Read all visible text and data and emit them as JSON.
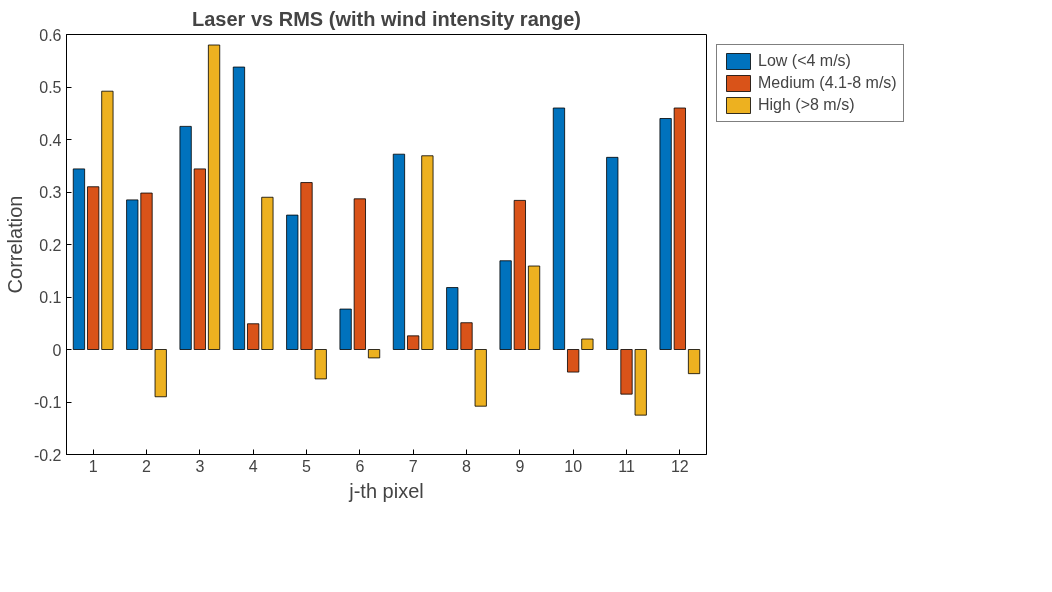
{
  "chart_data": {
    "type": "bar",
    "title": "Laser vs RMS (with wind intensity range)",
    "xlabel": "j-th pixel",
    "ylabel": "Correlation",
    "categories": [
      "1",
      "2",
      "3",
      "4",
      "5",
      "6",
      "7",
      "8",
      "9",
      "10",
      "11",
      "12"
    ],
    "series": [
      {
        "name": "Low (<4 m/s)",
        "color": "#0072bd",
        "values": [
          0.344,
          0.285,
          0.425,
          0.538,
          0.256,
          0.077,
          0.372,
          0.118,
          0.169,
          0.46,
          0.366,
          0.44
        ]
      },
      {
        "name": "Medium (4.1-8 m/s)",
        "color": "#d95319",
        "values": [
          0.31,
          0.298,
          0.344,
          0.049,
          0.318,
          0.287,
          0.026,
          0.051,
          0.284,
          -0.043,
          -0.085,
          0.46
        ]
      },
      {
        "name": "High (>8 m/s)",
        "color": "#edb120",
        "values": [
          0.492,
          -0.09,
          0.58,
          0.29,
          -0.056,
          -0.016,
          0.369,
          -0.108,
          0.159,
          0.02,
          -0.125,
          -0.046
        ]
      }
    ],
    "ylim": [
      -0.2,
      0.6
    ],
    "yticks": [
      {
        "value": -0.2,
        "label": "-0.2"
      },
      {
        "value": -0.1,
        "label": "-0.1"
      },
      0,
      0.1,
      0.2,
      0.3,
      0.4,
      0.5,
      0.6
    ],
    "grid": false,
    "legend": "top right"
  }
}
